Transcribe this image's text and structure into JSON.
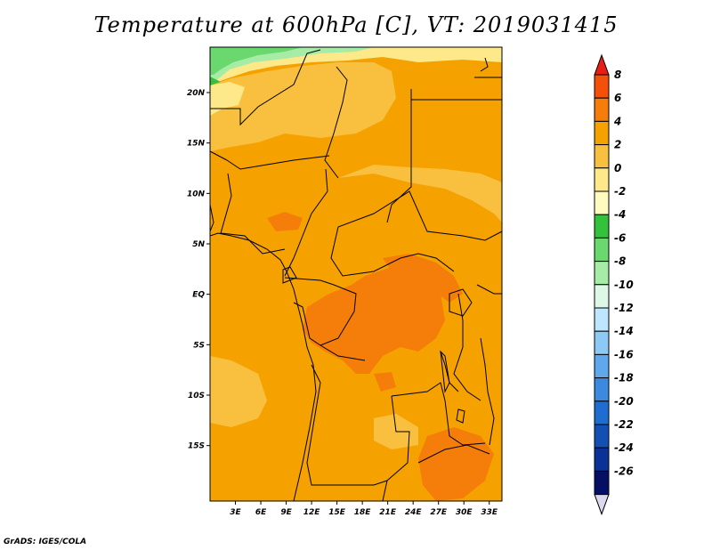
{
  "title": "Temperature at 600hPa [C], VT: 2019031415",
  "footer": "GrADS: IGES/COLA",
  "map": {
    "lat_range": [
      -20.5,
      24.5
    ],
    "lon_range": [
      0,
      34.5
    ],
    "lat_ticks": [
      {
        "value": 20,
        "label": "20N"
      },
      {
        "value": 15,
        "label": "15N"
      },
      {
        "value": 10,
        "label": "10N"
      },
      {
        "value": 5,
        "label": "5N"
      },
      {
        "value": 0,
        "label": "EQ"
      },
      {
        "value": -5,
        "label": "5S"
      },
      {
        "value": -10,
        "label": "10S"
      },
      {
        "value": -15,
        "label": "15S"
      }
    ],
    "lon_ticks": [
      {
        "value": 3,
        "label": "3E"
      },
      {
        "value": 6,
        "label": "6E"
      },
      {
        "value": 9,
        "label": "9E"
      },
      {
        "value": 12,
        "label": "12E"
      },
      {
        "value": 15,
        "label": "15E"
      },
      {
        "value": 18,
        "label": "18E"
      },
      {
        "value": 21,
        "label": "21E"
      },
      {
        "value": 24,
        "label": "24E"
      },
      {
        "value": 27,
        "label": "27E"
      },
      {
        "value": 30,
        "label": "30E"
      },
      {
        "value": 33,
        "label": "33E"
      }
    ],
    "base_color": "#f5a200"
  },
  "colorbar": {
    "labels": [
      "8",
      "6",
      "4",
      "2",
      "0",
      "-2",
      "-4",
      "-6",
      "-8",
      "-10",
      "-12",
      "-14",
      "-16",
      "-18",
      "-20",
      "-22",
      "-24",
      "-26"
    ],
    "colors": [
      "#e81e14",
      "#f5500a",
      "#f57d0a",
      "#f5a200",
      "#f9c040",
      "#fde88a",
      "#fffac0",
      "#34c23c",
      "#6ad86e",
      "#a6eca6",
      "#dcf8e6",
      "#bfe6ff",
      "#8ccaf5",
      "#5ea8eb",
      "#3c8ae0",
      "#1e6ed2",
      "#1450b4",
      "#0a3296",
      "#050f64",
      "#ddd8ee"
    ]
  }
}
